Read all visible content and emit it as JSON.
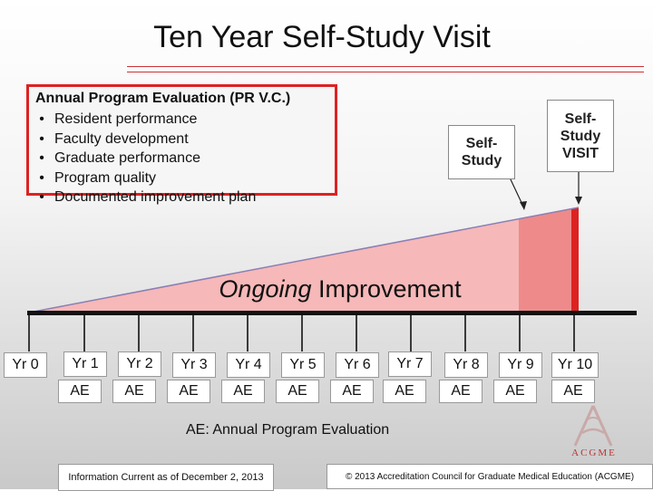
{
  "title": "Ten Year Self-Study Visit",
  "ape": {
    "title": "Annual Program Evaluation (PR V.C.)",
    "items": [
      "Resident performance",
      "Faculty development",
      "Graduate performance",
      "Program quality",
      "Documented improvement plan"
    ]
  },
  "callouts": {
    "self_study": "Self-Study",
    "visit": "Self-Study VISIT"
  },
  "ongoing": {
    "emphasis": "Ongoing",
    "rest": " Improvement"
  },
  "years": [
    "Yr 0",
    "Yr 1",
    "Yr 2",
    "Yr 3",
    "Yr 4",
    "Yr 5",
    "Yr 6",
    "Yr 7",
    "Yr 8",
    "Yr 9",
    "Yr 10"
  ],
  "ae_label": "AE",
  "legend": "AE: Annual Program Evaluation",
  "footer": {
    "left": "Information Current as of December 2, 2013",
    "right": "© 2013 Accreditation Council for Graduate Medical Education (ACGME)"
  },
  "logo_text": "ACGME",
  "colors": {
    "accent": "#dd2222",
    "wedge_light": "#f6b8b8",
    "wedge_mid": "#ee8a8a",
    "wedge_dark": "#dd2222"
  }
}
